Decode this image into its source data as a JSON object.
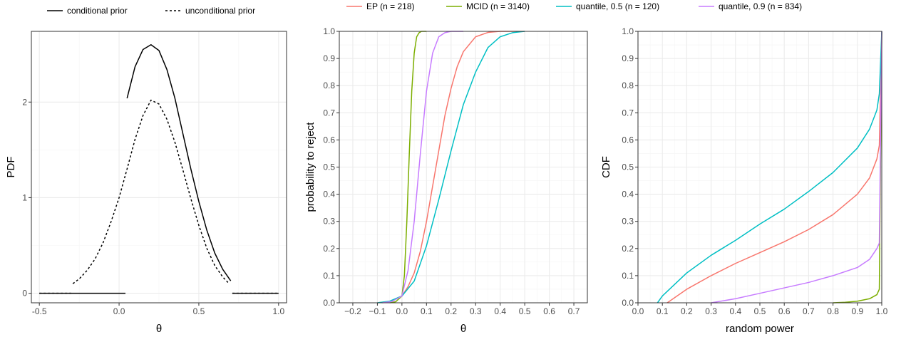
{
  "chart_data": [
    {
      "type": "line",
      "xlabel": "θ",
      "ylabel": "PDF",
      "xlim": [
        -0.55,
        1.05
      ],
      "ylim": [
        -0.1,
        2.74
      ],
      "xticks": [
        -0.5,
        0.0,
        0.5,
        1.0
      ],
      "xtick_labels": [
        "-0.5",
        "0.0",
        "0.5",
        "1.0"
      ],
      "yticks": [
        0,
        1,
        2
      ],
      "ytick_labels": [
        "0",
        "1",
        "2"
      ],
      "grid": true,
      "legend": {
        "position": "top",
        "entries": [
          {
            "label": "conditional prior",
            "style": "solid"
          },
          {
            "label": "unconditional prior",
            "style": "dashed"
          }
        ]
      },
      "series": [
        {
          "name": "conditional prior",
          "style": "solid",
          "color": "#000000",
          "segments": [
            {
              "x": [
                -0.5,
                0.04
              ],
              "y": [
                0,
                0
              ]
            },
            {
              "x": [
                0.05,
                0.1,
                0.15,
                0.2,
                0.25,
                0.3,
                0.35,
                0.4,
                0.45,
                0.5,
                0.55,
                0.6,
                0.65,
                0.7
              ],
              "y": [
                2.04,
                2.37,
                2.55,
                2.6,
                2.54,
                2.34,
                2.04,
                1.67,
                1.3,
                0.96,
                0.66,
                0.42,
                0.25,
                0.13
              ]
            },
            {
              "x": [
                0.71,
                1.0
              ],
              "y": [
                0,
                0
              ]
            }
          ]
        },
        {
          "name": "unconditional prior",
          "style": "dashed",
          "color": "#000000",
          "segments": [
            {
              "x": [
                -0.5,
                -0.3
              ],
              "y": [
                0,
                0
              ]
            },
            {
              "x": [
                -0.29,
                -0.25,
                -0.2,
                -0.15,
                -0.1,
                -0.05,
                0.0,
                0.05,
                0.1,
                0.15,
                0.2,
                0.25,
                0.3,
                0.35,
                0.4,
                0.45,
                0.5,
                0.55,
                0.6,
                0.65,
                0.69
              ],
              "y": [
                0.1,
                0.15,
                0.24,
                0.36,
                0.53,
                0.75,
                1.0,
                1.3,
                1.61,
                1.86,
                2.02,
                1.98,
                1.82,
                1.58,
                1.29,
                0.99,
                0.71,
                0.47,
                0.29,
                0.17,
                0.1
              ]
            },
            {
              "x": [
                0.71,
                1.0
              ],
              "y": [
                0,
                0
              ]
            }
          ]
        }
      ]
    },
    {
      "type": "line",
      "xlabel": "θ",
      "ylabel": "probability to reject",
      "xlim": [
        -0.255,
        0.755
      ],
      "ylim": [
        0,
        1
      ],
      "xticks": [
        -0.2,
        -0.1,
        0.0,
        0.1,
        0.2,
        0.3,
        0.4,
        0.5,
        0.6,
        0.7
      ],
      "xtick_labels": [
        "−0.2",
        "−0.1",
        "0.0",
        "0.1",
        "0.2",
        "0.3",
        "0.4",
        "0.5",
        "0.6",
        "0.7"
      ],
      "yticks": [
        0.0,
        0.1,
        0.2,
        0.3,
        0.4,
        0.5,
        0.6,
        0.7,
        0.8,
        0.9,
        1.0
      ],
      "ytick_labels": [
        "0.0",
        "0.1",
        "0.2",
        "0.3",
        "0.4",
        "0.5",
        "0.6",
        "0.7",
        "0.8",
        "0.9",
        "1.0"
      ],
      "grid": true,
      "legend": {
        "position": "top",
        "entries": [
          {
            "label": "EP (n = 218)",
            "color": "#F8766D"
          },
          {
            "label": "MCID (n = 3140)",
            "color": "#7CAE00"
          },
          {
            "label": "quantile, 0.5 (n = 120)",
            "color": "#00BFC4"
          },
          {
            "label": "quantile, 0.9 (n = 834)",
            "color": "#C77CFF"
          }
        ]
      },
      "series": [
        {
          "name": "EP (n = 218)",
          "color": "#F8766D",
          "x": [
            -0.1,
            -0.05,
            0.0,
            0.025,
            0.05,
            0.075,
            0.1,
            0.125,
            0.15,
            0.175,
            0.2,
            0.225,
            0.25,
            0.3,
            0.35,
            0.4,
            0.45,
            0.5
          ],
          "y": [
            0.0,
            0.005,
            0.025,
            0.06,
            0.11,
            0.19,
            0.3,
            0.43,
            0.56,
            0.69,
            0.79,
            0.87,
            0.925,
            0.98,
            0.996,
            1.0,
            1.0,
            1.0
          ]
        },
        {
          "name": "MCID (n = 3140)",
          "color": "#7CAE00",
          "x": [
            -0.05,
            -0.025,
            0.0,
            0.01,
            0.02,
            0.03,
            0.04,
            0.05,
            0.06,
            0.07,
            0.08,
            0.1
          ],
          "y": [
            0.0,
            0.004,
            0.025,
            0.1,
            0.3,
            0.55,
            0.78,
            0.92,
            0.98,
            0.995,
            1.0,
            1.0
          ]
        },
        {
          "name": "quantile, 0.5 (n = 120)",
          "color": "#00BFC4",
          "x": [
            -0.1,
            -0.05,
            0.0,
            0.05,
            0.1,
            0.15,
            0.2,
            0.25,
            0.3,
            0.35,
            0.4,
            0.45,
            0.5
          ],
          "y": [
            0.0,
            0.006,
            0.025,
            0.08,
            0.21,
            0.38,
            0.56,
            0.73,
            0.85,
            0.94,
            0.98,
            0.995,
            1.0
          ]
        },
        {
          "name": "quantile, 0.9 (n = 834)",
          "color": "#C77CFF",
          "x": [
            -0.08,
            -0.04,
            0.0,
            0.025,
            0.05,
            0.075,
            0.1,
            0.125,
            0.15,
            0.175,
            0.2,
            0.25
          ],
          "y": [
            0.0,
            0.005,
            0.025,
            0.12,
            0.3,
            0.55,
            0.78,
            0.92,
            0.98,
            0.995,
            1.0,
            1.0
          ]
        }
      ]
    },
    {
      "type": "line",
      "xlabel": "random power",
      "ylabel": "CDF",
      "xlim": [
        0.0,
        1.0
      ],
      "ylim": [
        0,
        1
      ],
      "xticks": [
        0.0,
        0.1,
        0.2,
        0.3,
        0.4,
        0.5,
        0.6,
        0.7,
        0.8,
        0.9,
        1.0
      ],
      "xtick_labels": [
        "0.0",
        "0.1",
        "0.2",
        "0.3",
        "0.4",
        "0.5",
        "0.6",
        "0.7",
        "0.8",
        "0.9",
        "1.0"
      ],
      "yticks": [
        0.0,
        0.1,
        0.2,
        0.3,
        0.4,
        0.5,
        0.6,
        0.7,
        0.8,
        0.9,
        1.0
      ],
      "ytick_labels": [
        "0.0",
        "0.1",
        "0.2",
        "0.3",
        "0.4",
        "0.5",
        "0.6",
        "0.7",
        "0.8",
        "0.9",
        "1.0"
      ],
      "grid": true,
      "series": [
        {
          "name": "EP (n = 218)",
          "color": "#F8766D",
          "x": [
            0.12,
            0.2,
            0.3,
            0.4,
            0.5,
            0.6,
            0.7,
            0.8,
            0.9,
            0.95,
            0.98,
            0.99,
            1.0
          ],
          "y": [
            0.0,
            0.05,
            0.1,
            0.145,
            0.185,
            0.225,
            0.27,
            0.325,
            0.4,
            0.46,
            0.53,
            0.58,
            1.0
          ]
        },
        {
          "name": "MCID (n = 3140)",
          "color": "#7CAE00",
          "x": [
            0.8,
            0.85,
            0.9,
            0.95,
            0.98,
            0.99,
            1.0
          ],
          "y": [
            0.0,
            0.002,
            0.006,
            0.015,
            0.03,
            0.05,
            1.0
          ]
        },
        {
          "name": "quantile, 0.5 (n = 120)",
          "color": "#00BFC4",
          "x": [
            0.08,
            0.1,
            0.2,
            0.3,
            0.4,
            0.5,
            0.6,
            0.7,
            0.8,
            0.9,
            0.95,
            0.98,
            0.99,
            1.0
          ],
          "y": [
            0.0,
            0.025,
            0.11,
            0.175,
            0.23,
            0.29,
            0.345,
            0.41,
            0.48,
            0.57,
            0.64,
            0.71,
            0.77,
            1.0
          ]
        },
        {
          "name": "quantile, 0.9 (n = 834)",
          "color": "#C77CFF",
          "x": [
            0.3,
            0.4,
            0.5,
            0.6,
            0.7,
            0.8,
            0.9,
            0.95,
            0.98,
            0.99,
            1.0
          ],
          "y": [
            0.0,
            0.015,
            0.035,
            0.055,
            0.075,
            0.1,
            0.13,
            0.16,
            0.2,
            0.22,
            1.0
          ]
        }
      ]
    }
  ]
}
